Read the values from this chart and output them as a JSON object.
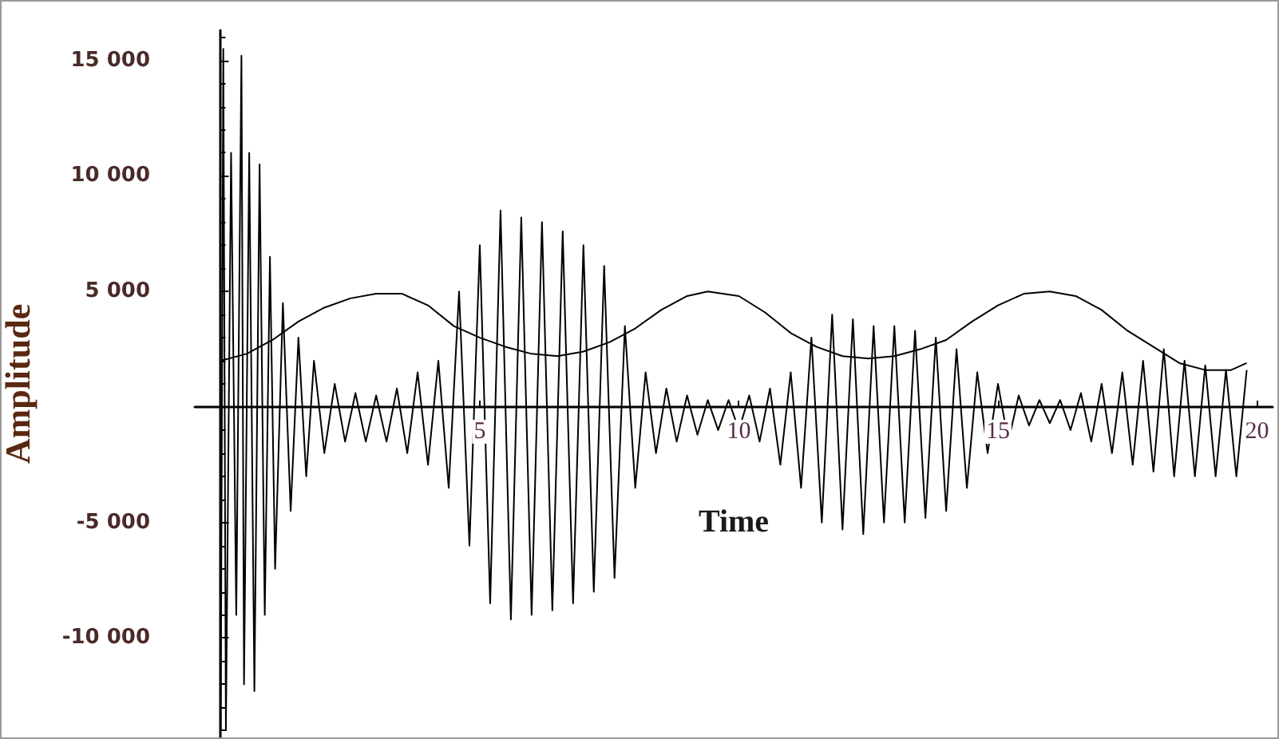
{
  "chart_data": {
    "type": "line",
    "xlabel": "Time",
    "ylabel": "Amplitude",
    "xlim": [
      -0.5,
      20.3
    ],
    "ylim": [
      -14300,
      16300
    ],
    "xticks": [
      5,
      10,
      15,
      20
    ],
    "yticks": [
      {
        "value": -10000,
        "label": "-10 000"
      },
      {
        "value": -5000,
        "label": "-5 000"
      },
      {
        "value": 5000,
        "label": "5 000"
      },
      {
        "value": 10000,
        "label": "10 000"
      },
      {
        "value": 15000,
        "label": "15 000"
      }
    ],
    "grid": false,
    "marker": "none",
    "series": [
      {
        "color": "#000000",
        "x": [
          0,
          0.05,
          0.1,
          0.2,
          0.3,
          0.4,
          0.45,
          0.55,
          0.65,
          0.75,
          0.85,
          0.95,
          1.05,
          1.2,
          1.35,
          1.5,
          1.65,
          1.8,
          2.0,
          2.2,
          2.4,
          2.6,
          2.8,
          3.0,
          3.2,
          3.4,
          3.6,
          3.8,
          4.0,
          4.2,
          4.4,
          4.6,
          4.8,
          5.0,
          5.2,
          5.4,
          5.6,
          5.8,
          6.0,
          6.2,
          6.4,
          6.6,
          6.8,
          7.0,
          7.2,
          7.4,
          7.6,
          7.8,
          8.0,
          8.2,
          8.4,
          8.6,
          8.8,
          9.0,
          9.2,
          9.4,
          9.6,
          9.8,
          10.0,
          10.2,
          10.4,
          10.6,
          10.8,
          11.0,
          11.2,
          11.4,
          11.6,
          11.8,
          12.0,
          12.2,
          12.4,
          12.6,
          12.8,
          13.0,
          13.2,
          13.4,
          13.6,
          13.8,
          14.0,
          14.2,
          14.4,
          14.6,
          14.8,
          15.0,
          15.2,
          15.4,
          15.6,
          15.8,
          16.0,
          16.2,
          16.4,
          16.6,
          16.8,
          17.0,
          17.2,
          17.4,
          17.6,
          17.8,
          18.0,
          18.2,
          18.4,
          18.6,
          18.8,
          19.0,
          19.2,
          19.4,
          19.6,
          19.8
        ],
        "values": [
          -14000,
          15500,
          -14000,
          11000,
          -9000,
          15200,
          -12000,
          11000,
          -12300,
          10500,
          -9000,
          6500,
          -7000,
          4500,
          -4500,
          3000,
          -3000,
          2000,
          -2000,
          1000,
          -1500,
          600,
          -1500,
          500,
          -1500,
          800,
          -2000,
          1500,
          -2500,
          2000,
          -3500,
          5000,
          -6000,
          7000,
          -8500,
          8500,
          -9200,
          8200,
          -9000,
          8000,
          -8800,
          7600,
          -8500,
          7000,
          -8000,
          6100,
          -7400,
          3500,
          -3500,
          1500,
          -2000,
          800,
          -1500,
          500,
          -1200,
          300,
          -1000,
          300,
          -1000,
          500,
          -1500,
          800,
          -2500,
          1500,
          -3500,
          3000,
          -5000,
          4000,
          -5300,
          3800,
          -5500,
          3500,
          -5000,
          3500,
          -5000,
          3300,
          -4800,
          3000,
          -4500,
          2500,
          -3500,
          1500,
          -2000,
          1000,
          -1500,
          500,
          -800,
          300,
          -700,
          300,
          -1000,
          600,
          -1500,
          1000,
          -2000,
          1500,
          -2500,
          2000,
          -2800,
          2500,
          -3000,
          2000,
          -3000,
          1800,
          -3000,
          1600,
          -3000,
          1600
        ]
      },
      {
        "color": "#000000",
        "x": [
          0,
          0.5,
          1,
          1.5,
          2,
          2.5,
          3,
          3.5,
          4,
          4.5,
          5,
          5.5,
          6,
          6.5,
          7,
          7.5,
          8,
          8.5,
          9,
          9.4,
          10,
          10.5,
          11,
          11.5,
          12,
          12.5,
          13,
          13.5,
          14,
          14.5,
          15,
          15.5,
          16,
          16.5,
          17,
          17.5,
          18,
          18.5,
          19,
          19.5,
          19.8
        ],
        "values": [
          2000,
          2300,
          2900,
          3700,
          4300,
          4700,
          4900,
          4900,
          4400,
          3500,
          3000,
          2600,
          2300,
          2200,
          2400,
          2800,
          3400,
          4200,
          4800,
          5000,
          4800,
          4100,
          3200,
          2600,
          2200,
          2100,
          2200,
          2500,
          2900,
          3700,
          4400,
          4900,
          5000,
          4800,
          4200,
          3300,
          2600,
          1900,
          1600,
          1600,
          1900
        ]
      }
    ]
  }
}
